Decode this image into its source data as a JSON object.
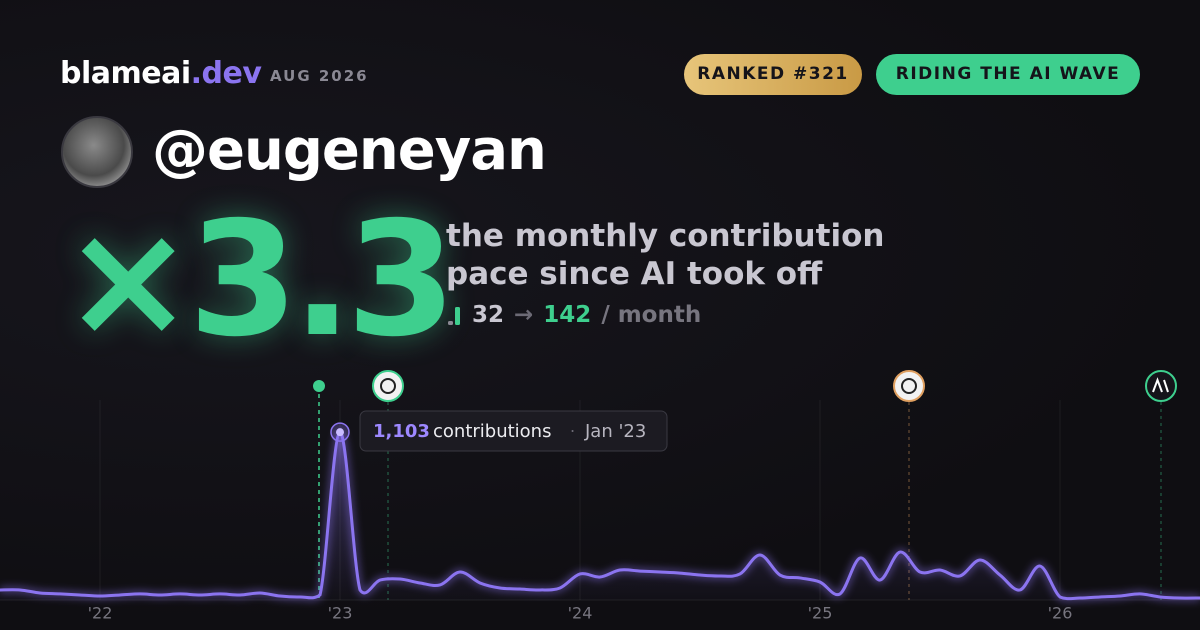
{
  "header": {
    "brand": "blameai",
    "brand_suffix": ".dev",
    "date": "AUG 2026",
    "badges": [
      "RANKED #321",
      "RIDING THE AI WAVE"
    ],
    "handle": "@eugeneyan"
  },
  "stat": {
    "multiplier": "×3.3",
    "description": [
      "the monthly contribution",
      "pace since AI took off"
    ],
    "before": 32,
    "arrow": "→",
    "after": 142,
    "unit": "/ month"
  },
  "tooltip": {
    "label": "contributions",
    "separator": "·",
    "date": "Jan '23"
  },
  "chart_data": {
    "type": "line",
    "color": "#8b74f0",
    "categories": [
      null,
      null,
      null,
      null,
      null,
      "'22",
      null,
      null,
      null,
      null,
      null,
      null,
      null,
      null,
      null,
      null,
      null,
      "'23",
      null,
      null,
      null,
      null,
      null,
      null,
      null,
      null,
      null,
      null,
      null,
      "'24",
      null,
      null,
      null,
      null,
      null,
      null,
      null,
      null,
      null,
      null,
      null,
      "'25",
      null,
      null,
      null,
      null,
      null,
      null,
      null,
      null,
      null,
      null,
      null,
      "'26",
      null,
      null,
      null,
      null,
      null,
      null,
      null
    ],
    "values": [
      66,
      66,
      46,
      40,
      33,
      26,
      33,
      40,
      33,
      40,
      33,
      40,
      33,
      46,
      26,
      20,
      33,
      1103,
      66,
      131,
      138,
      112,
      99,
      184,
      112,
      79,
      72,
      66,
      79,
      171,
      151,
      197,
      190,
      184,
      177,
      164,
      158,
      171,
      296,
      164,
      145,
      118,
      40,
      276,
      131,
      315,
      184,
      197,
      158,
      263,
      164,
      66,
      223,
      20,
      13,
      20,
      26,
      40,
      20,
      13,
      13
    ],
    "value_labels": [
      null,
      null,
      null,
      null,
      null,
      null,
      null,
      null,
      null,
      null,
      null,
      null,
      null,
      null,
      null,
      null,
      null,
      "1,103",
      null,
      null,
      null,
      null,
      null,
      null,
      null,
      null,
      null,
      null,
      null,
      null,
      null,
      null,
      null,
      null,
      null,
      null,
      null,
      null,
      null,
      null,
      null,
      null,
      null,
      null,
      null,
      null,
      null,
      null,
      null,
      null,
      null,
      null,
      null,
      null,
      null,
      null,
      null,
      null,
      null,
      null,
      null
    ],
    "ylim": [
      0,
      1400
    ],
    "grid": true
  }
}
